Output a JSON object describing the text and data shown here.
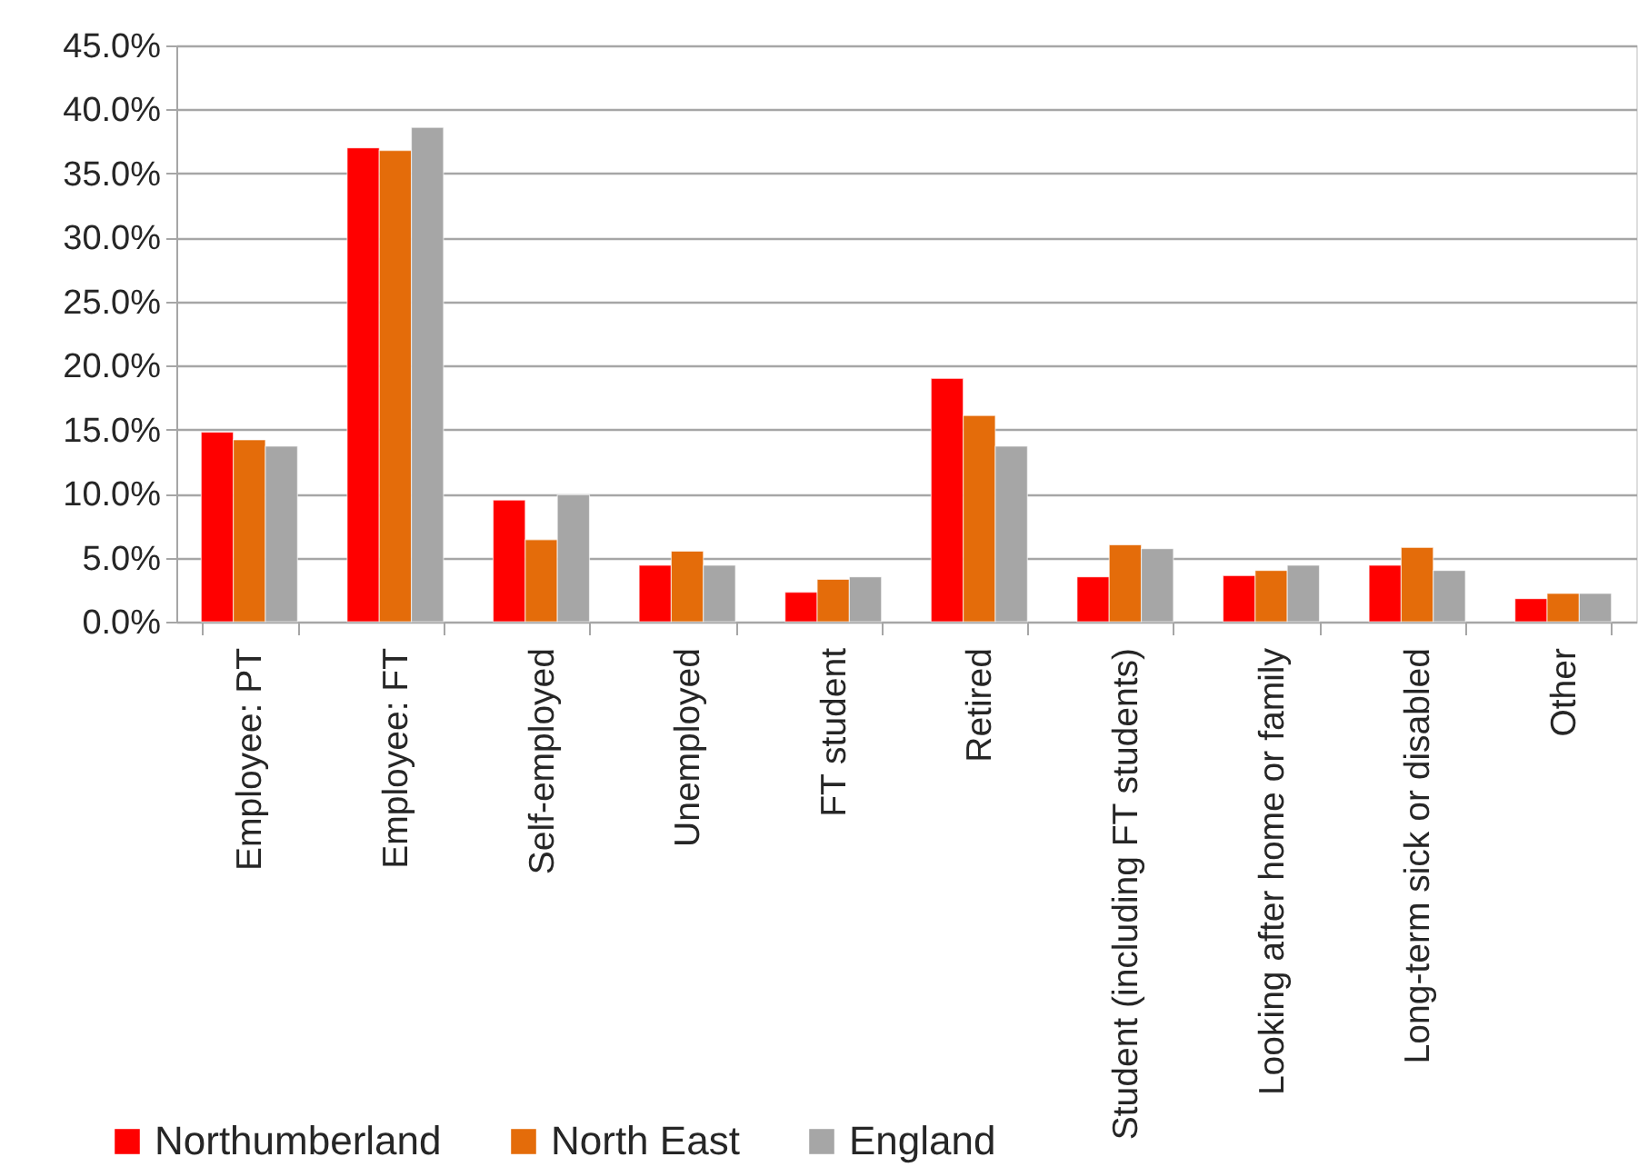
{
  "chart_data": {
    "type": "bar",
    "categories": [
      "Employee: PT",
      "Employee: FT",
      "Self-employed",
      "Unemployed",
      "FT student",
      "Retired",
      "Student (including FT students)",
      "Looking after home or family",
      "Long-term sick or disabled",
      "Other"
    ],
    "series": [
      {
        "name": "Northumberland",
        "color": "#ff0000",
        "values": [
          14.8,
          37.0,
          9.5,
          4.4,
          2.3,
          19.0,
          3.5,
          3.6,
          4.4,
          1.8
        ]
      },
      {
        "name": "North East",
        "color": "#e46c0a",
        "values": [
          14.2,
          36.8,
          6.4,
          5.5,
          3.3,
          16.1,
          6.0,
          4.0,
          5.8,
          2.2
        ]
      },
      {
        "name": "England",
        "color": "#a6a6a6",
        "values": [
          13.7,
          38.6,
          9.9,
          4.4,
          3.5,
          13.7,
          5.7,
          4.4,
          4.0,
          2.2
        ]
      }
    ],
    "ylim": [
      0,
      45
    ],
    "yticks": [
      {
        "value": 0,
        "label": "0.0%"
      },
      {
        "value": 5,
        "label": "5.0%"
      },
      {
        "value": 10,
        "label": "10.0%"
      },
      {
        "value": 15,
        "label": "15.0%"
      },
      {
        "value": 20,
        "label": "20.0%"
      },
      {
        "value": 25,
        "label": "25.0%"
      },
      {
        "value": 30,
        "label": "30.0%"
      },
      {
        "value": 35,
        "label": "35.0%"
      },
      {
        "value": 40,
        "label": "40.0%"
      },
      {
        "value": 45,
        "label": "45.0%"
      }
    ],
    "grid": "y",
    "legend": "bottom left"
  }
}
